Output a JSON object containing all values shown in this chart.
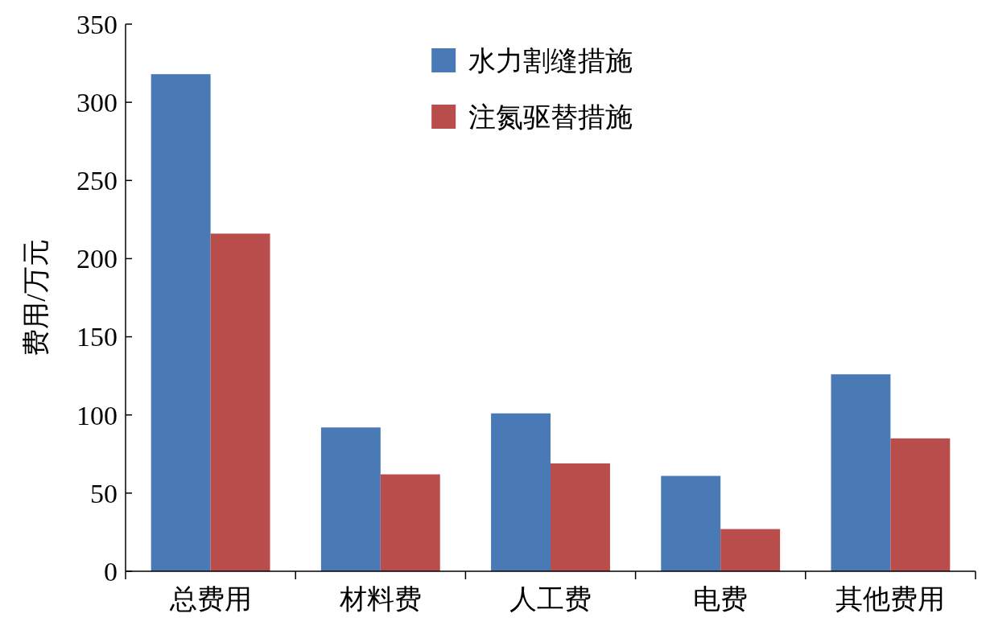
{
  "chart_data": {
    "type": "bar",
    "ylabel": "费用/万元",
    "categories": [
      "总费用",
      "材料费",
      "人工费",
      "电费",
      "其他费用"
    ],
    "series": [
      {
        "name": "水力割缝措施",
        "color": "#4a7ab5",
        "values": [
          318,
          92,
          101,
          61,
          126
        ]
      },
      {
        "name": "注氮驱替措施",
        "color": "#b94d4b",
        "values": [
          216,
          62,
          69,
          27,
          85
        ]
      }
    ],
    "ylim": [
      0,
      350
    ],
    "yticks": [
      0,
      50,
      100,
      150,
      200,
      250,
      300,
      350
    ],
    "grid": false,
    "legend": "top"
  }
}
